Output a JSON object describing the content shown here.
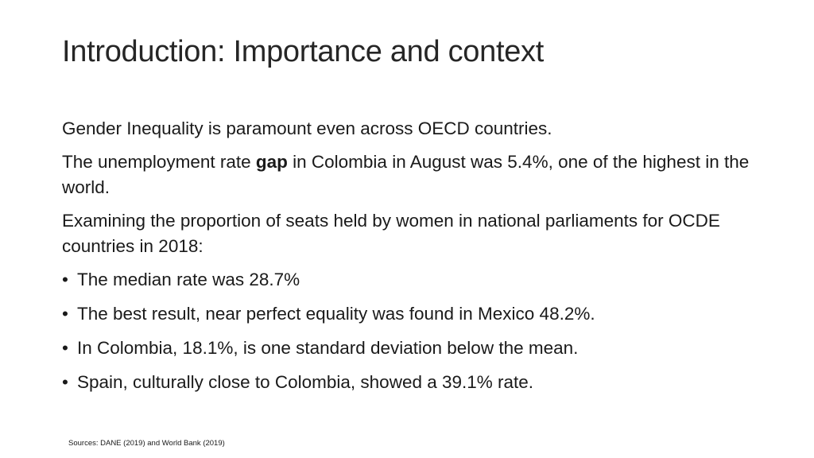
{
  "slide": {
    "title": "Introduction: Importance and context",
    "paragraphs": {
      "p1": "Gender Inequality is paramount even across OECD countries.",
      "p2_before": "The unemployment rate ",
      "p2_bold": "gap",
      "p2_after": " in Colombia in August was 5.4%, one of the highest in the world.",
      "p3": "Examining the proportion of seats held by women in national parliaments for OCDE countries in 2018:"
    },
    "bullets": [
      "The median rate was 28.7%",
      "The best result, near perfect equality was found in Mexico 48.2%.",
      "In Colombia, 18.1%, is one standard deviation below the mean.",
      "Spain, culturally close to Colombia, showed a 39.1% rate."
    ],
    "bullet_glyph": "•",
    "source": "Sources: DANE (2019) and World Bank (2019)"
  }
}
